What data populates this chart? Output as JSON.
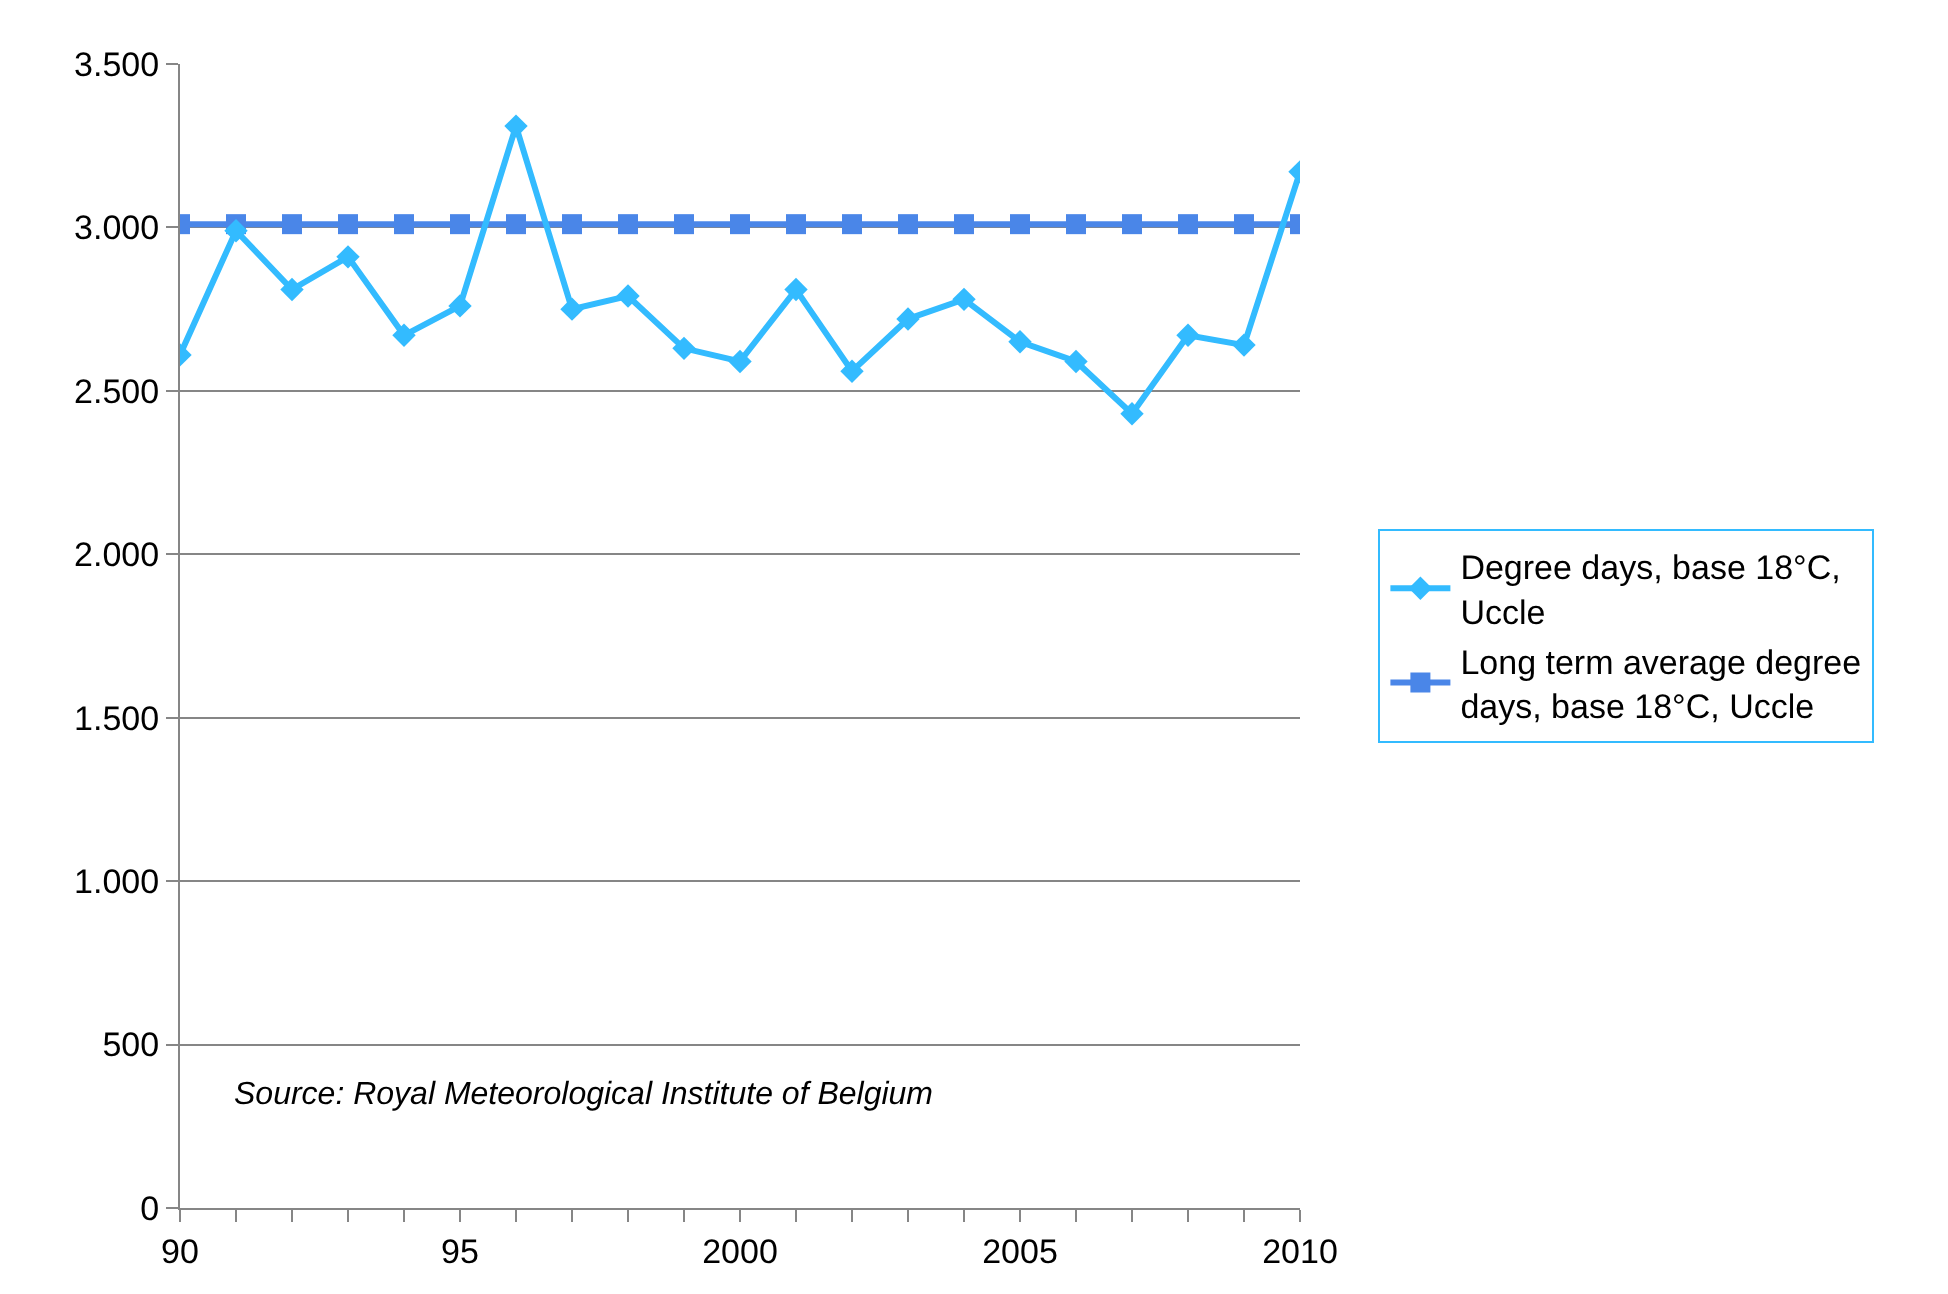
{
  "chart_data": {
    "type": "line",
    "x": [
      1990,
      1991,
      1992,
      1993,
      1994,
      1995,
      1996,
      1997,
      1998,
      1999,
      2000,
      2001,
      2002,
      2003,
      2004,
      2005,
      2006,
      2007,
      2008,
      2009,
      2010
    ],
    "series": [
      {
        "name": "Degree days, base 18°C, Uccle",
        "color": "#33bbff",
        "marker": "diamond",
        "values": [
          2610,
          2990,
          2810,
          2910,
          2670,
          2760,
          3310,
          2750,
          2790,
          2630,
          2590,
          2810,
          2560,
          2720,
          2780,
          2650,
          2590,
          2430,
          2670,
          2640,
          3170
        ]
      },
      {
        "name": "Long term average degree days, base 18°C, Uccle",
        "color": "#4a86e8",
        "marker": "square",
        "values": [
          3010,
          3010,
          3010,
          3010,
          3010,
          3010,
          3010,
          3010,
          3010,
          3010,
          3010,
          3010,
          3010,
          3010,
          3010,
          3010,
          3010,
          3010,
          3010,
          3010,
          3010
        ]
      }
    ],
    "xlim": [
      1990,
      2010
    ],
    "xticks": [
      {
        "value": 1990,
        "label": "90"
      },
      {
        "value": 1995,
        "label": "95"
      },
      2000,
      2005,
      2010
    ],
    "ylim": [
      0,
      3500
    ],
    "yticks": [
      {
        "value": 0,
        "label": "0"
      },
      {
        "value": 500,
        "label": "500"
      },
      {
        "value": 1000,
        "label": "1.000"
      },
      {
        "value": 1500,
        "label": "1.500"
      },
      {
        "value": 2000,
        "label": "2.000"
      },
      {
        "value": 2500,
        "label": "2.500"
      },
      {
        "value": 3000,
        "label": "3.000"
      },
      {
        "value": 3500,
        "label": "3.500"
      }
    ],
    "grid": "y",
    "legend": "right",
    "line_style": "solid",
    "annotations": [
      "Source: Royal Meteorological Institute of Belgium"
    ]
  }
}
